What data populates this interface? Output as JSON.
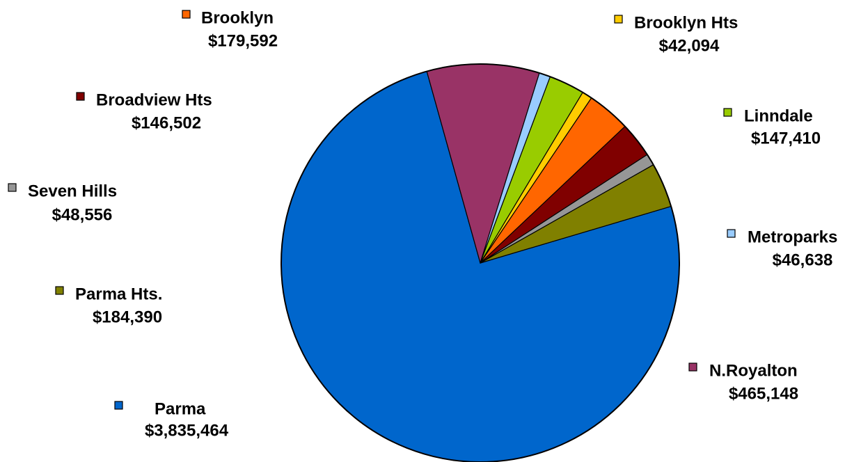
{
  "chart_data": {
    "type": "pie",
    "title": "",
    "series": [
      {
        "name": "Parma",
        "label": "$3,835,464",
        "value": 3835464,
        "color": "#0066CC"
      },
      {
        "name": "N.Royalton",
        "label": "$465,148",
        "value": 465148,
        "color": "#993366"
      },
      {
        "name": "Metroparks",
        "label": "$46,638",
        "value": 46638,
        "color": "#99CCFF"
      },
      {
        "name": "Linndale",
        "label": "$147,410",
        "value": 147410,
        "color": "#99CC00"
      },
      {
        "name": "Brooklyn Hts",
        "label": "$42,094",
        "value": 42094,
        "color": "#FFCC00"
      },
      {
        "name": "Brooklyn",
        "label": "$179,592",
        "value": 179592,
        "color": "#FF6600"
      },
      {
        "name": "Broadview Hts",
        "label": "$146,502",
        "value": 146502,
        "color": "#800000"
      },
      {
        "name": "Seven Hills",
        "label": "$48,556",
        "value": 48556,
        "color": "#969696"
      },
      {
        "name": "Parma Hts.",
        "label": "$184,390",
        "value": 184390,
        "color": "#808000"
      }
    ]
  }
}
